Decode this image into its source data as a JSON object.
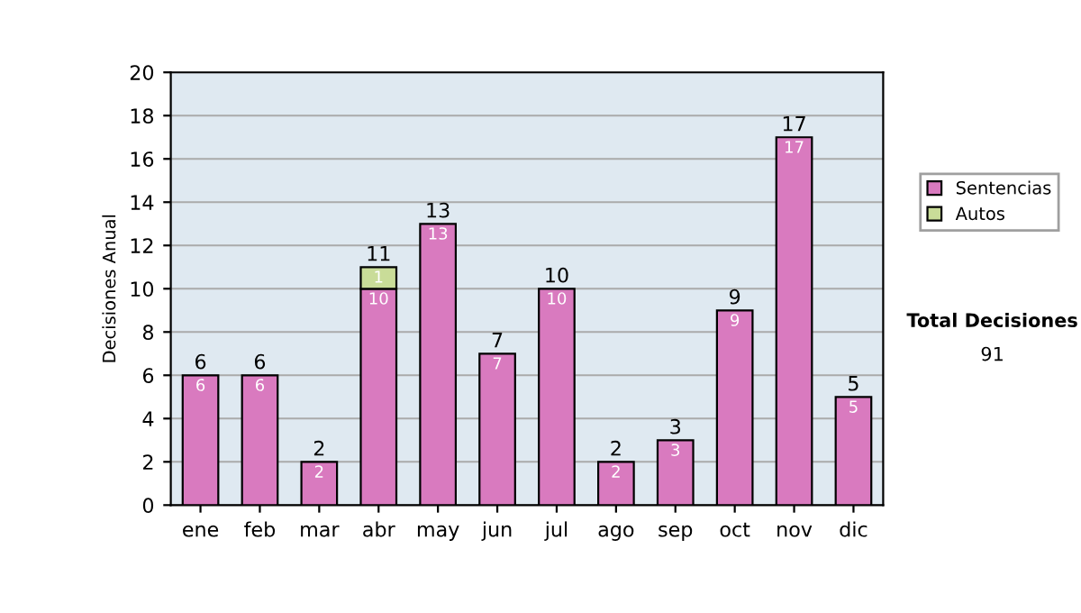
{
  "chart_data": {
    "type": "bar",
    "stacked": true,
    "ylabel": "Decisiones Anual",
    "categories": [
      "ene",
      "feb",
      "mar",
      "abr",
      "may",
      "jun",
      "jul",
      "ago",
      "sep",
      "oct",
      "nov",
      "dic"
    ],
    "series": [
      {
        "name": "Sentencias",
        "color": "#d97abf",
        "values": [
          6,
          6,
          2,
          10,
          13,
          7,
          10,
          2,
          3,
          9,
          17,
          5
        ],
        "value_labels": [
          "6",
          "6",
          "2",
          "10",
          "13",
          "7",
          "10",
          "2",
          "3",
          "9",
          "17",
          "5"
        ]
      },
      {
        "name": "Autos",
        "color": "#c9dc98",
        "values": [
          null,
          null,
          null,
          1,
          null,
          null,
          null,
          null,
          null,
          null,
          null,
          null
        ],
        "value_labels": [
          null,
          null,
          null,
          "1",
          null,
          null,
          null,
          null,
          null,
          null,
          null,
          null
        ]
      }
    ],
    "totals": [
      "6",
      "6",
      "2",
      "11",
      "13",
      "7",
      "10",
      "2",
      "3",
      "9",
      "17",
      "5"
    ],
    "ylim": [
      0,
      20
    ],
    "yticks": [
      0,
      2,
      4,
      6,
      8,
      10,
      12,
      14,
      16,
      18,
      20
    ],
    "grid": "y",
    "legend": "right",
    "annotations": [
      "Total Decisiones",
      "91"
    ]
  }
}
